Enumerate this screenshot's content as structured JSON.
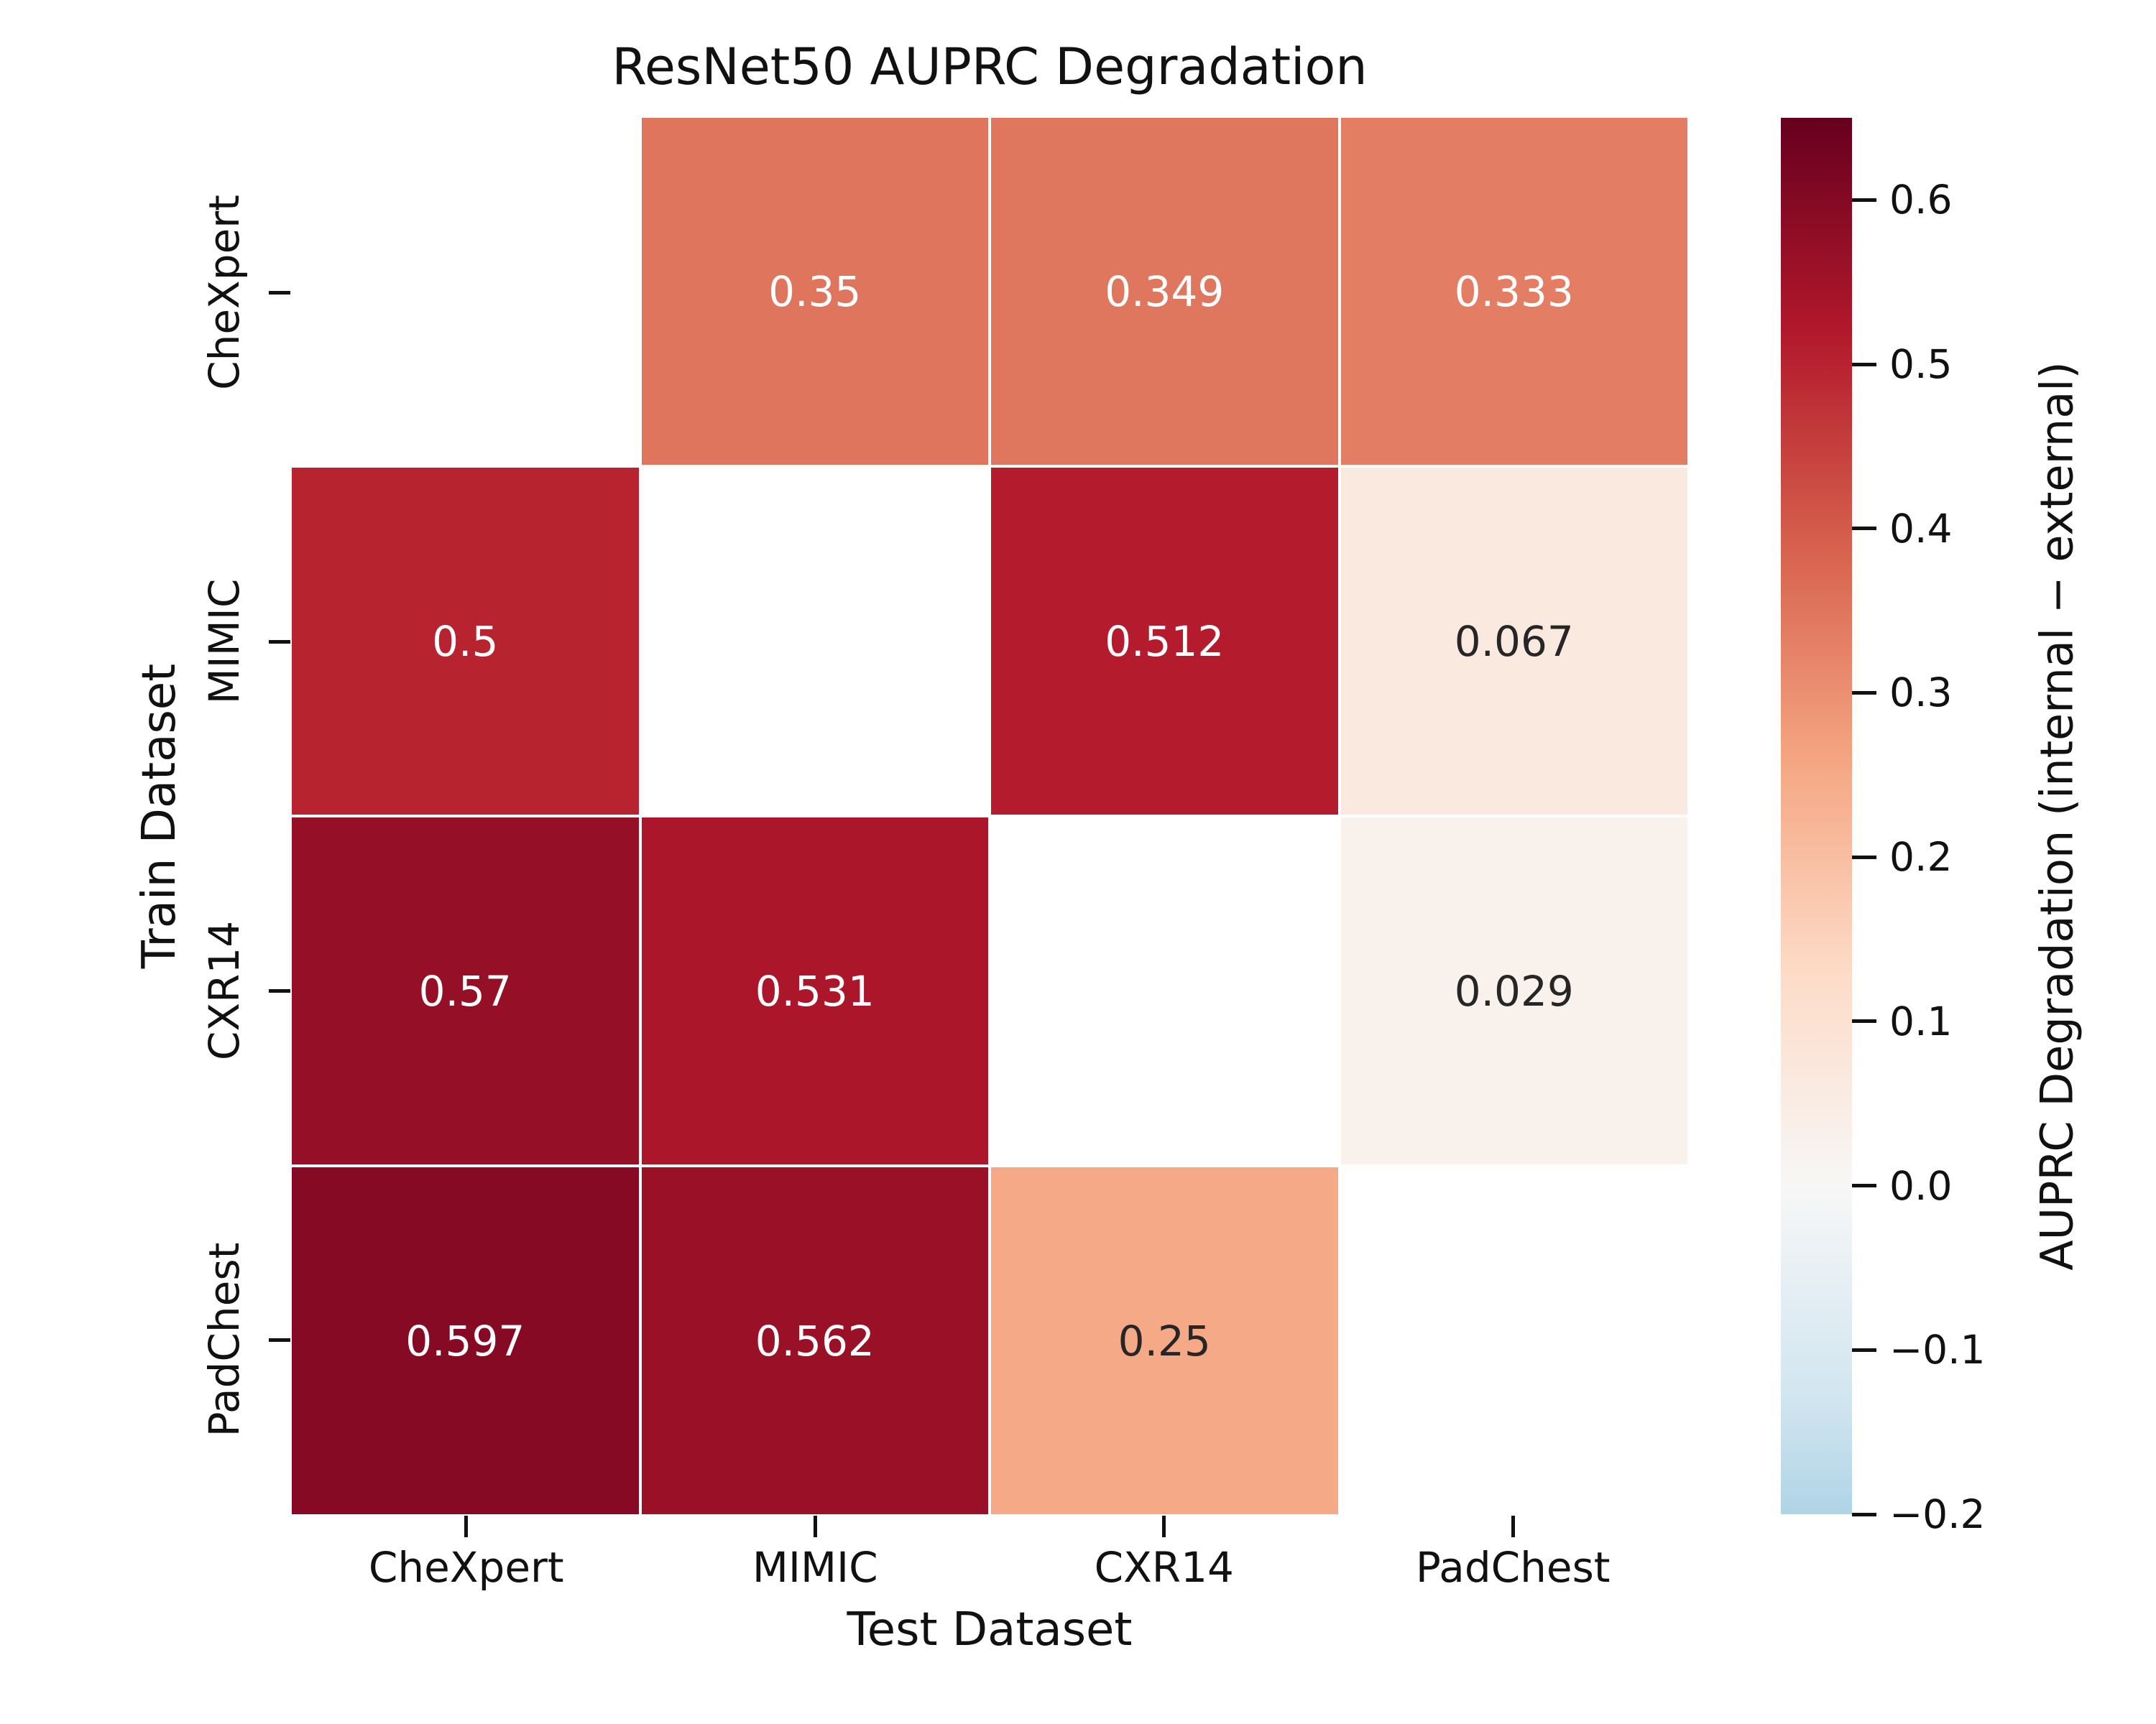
{
  "title": "ResNet50 AUPRC Degradation",
  "x_axis": {
    "label": "Test Dataset",
    "ticks": [
      "CheXpert",
      "MIMIC",
      "CXR14",
      "PadChest"
    ]
  },
  "y_axis": {
    "label": "Train Dataset",
    "ticks": [
      "CheXpert",
      "MIMIC",
      "CXR14",
      "PadChest"
    ]
  },
  "colorbar": {
    "label": "AUPRC Degradation (internal − external)",
    "vmin": -0.2,
    "vmax": 0.65,
    "ticks": [
      {
        "value": 0.6,
        "label": "0.6"
      },
      {
        "value": 0.5,
        "label": "0.5"
      },
      {
        "value": 0.4,
        "label": "0.4"
      },
      {
        "value": 0.3,
        "label": "0.3"
      },
      {
        "value": 0.2,
        "label": "0.2"
      },
      {
        "value": 0.1,
        "label": "0.1"
      },
      {
        "value": 0.0,
        "label": "0.0"
      },
      {
        "value": -0.1,
        "label": "−0.1"
      },
      {
        "value": -0.2,
        "label": "−0.2"
      }
    ]
  },
  "colors": {
    "background": "#ffffff",
    "text": "#111111",
    "annotation_dark": "#262626",
    "annotation_light": "#ffffff",
    "masked_cell": "#ffffff"
  },
  "chart_data": {
    "type": "heatmap",
    "title": "ResNet50 AUPRC Degradation",
    "xlabel": "Test Dataset",
    "ylabel": "Train Dataset",
    "rows": [
      "CheXpert",
      "MIMIC",
      "CXR14",
      "PadChest"
    ],
    "columns": [
      "CheXpert",
      "MIMIC",
      "CXR14",
      "PadChest"
    ],
    "values": [
      [
        null,
        0.35,
        0.349,
        0.333
      ],
      [
        0.5,
        null,
        0.512,
        0.067
      ],
      [
        0.57,
        0.531,
        null,
        0.029
      ],
      [
        0.597,
        0.562,
        0.25,
        null
      ]
    ],
    "annotations": [
      [
        "",
        "0.35",
        "0.349",
        "0.333"
      ],
      [
        "0.5",
        "",
        "0.512",
        "0.067"
      ],
      [
        "0.57",
        "0.531",
        "",
        "0.029"
      ],
      [
        "0.597",
        "0.562",
        "0.25",
        ""
      ]
    ],
    "diagonal_masked": true,
    "grid_line_color": "#ffffff",
    "legend_position": "right-colorbar",
    "colormap": {
      "name": "RdBu_r",
      "domain": [
        -0.65,
        0.65
      ],
      "center": 0,
      "anchors": [
        "#053061",
        "#2166ac",
        "#4393c3",
        "#92c5de",
        "#d1e5f0",
        "#f7f7f7",
        "#fddbc7",
        "#f4a582",
        "#d6604d",
        "#b2182b",
        "#67001f"
      ]
    },
    "colorbar_range": [
      -0.2,
      0.65
    ]
  }
}
